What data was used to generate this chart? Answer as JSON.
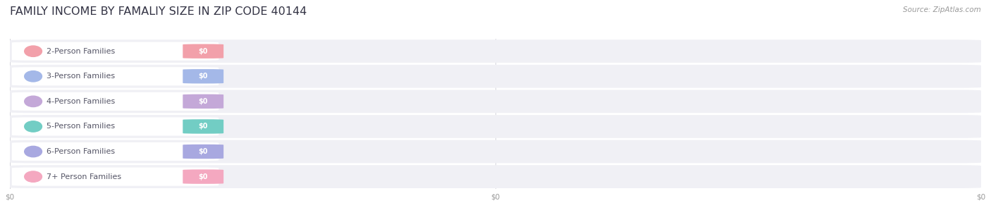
{
  "title": "FAMILY INCOME BY FAMALIY SIZE IN ZIP CODE 40144",
  "source": "Source: ZipAtlas.com",
  "categories": [
    "2-Person Families",
    "3-Person Families",
    "4-Person Families",
    "5-Person Families",
    "6-Person Families",
    "7+ Person Families"
  ],
  "values": [
    0,
    0,
    0,
    0,
    0,
    0
  ],
  "bar_colors": [
    "#f2a0aa",
    "#a4b8e8",
    "#c4a8d8",
    "#72cdc4",
    "#a8a8e0",
    "#f4a8c0"
  ],
  "bar_bg_colors": [
    "#f8e8ea",
    "#e8ecf8",
    "#ede8f5",
    "#e0f4f3",
    "#eaeaf8",
    "#fce8f0"
  ],
  "dot_colors": [
    "#f2a0aa",
    "#a4b8e8",
    "#c4a8d8",
    "#72cdc4",
    "#a8a8e0",
    "#f4a8c0"
  ],
  "label_color": "#555566",
  "value_label_color": "#ffffff",
  "background_color": "#ffffff",
  "row_bg_color": "#f0f0f5",
  "grid_color": "#d4d4dc",
  "title_fontsize": 11.5,
  "label_fontsize": 8.0,
  "source_fontsize": 7.5,
  "tick_fontsize": 7.5,
  "tick_color": "#999999"
}
